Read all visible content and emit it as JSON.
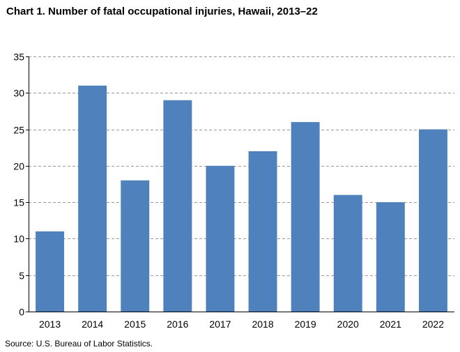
{
  "chart_data": {
    "type": "bar",
    "title": "Chart 1. Number of fatal occupational injuries, Hawaii, 2013–22",
    "categories": [
      "2013",
      "2014",
      "2015",
      "2016",
      "2017",
      "2018",
      "2019",
      "2020",
      "2021",
      "2022"
    ],
    "values": [
      11,
      31,
      18,
      29,
      20,
      22,
      26,
      16,
      15,
      25
    ],
    "xlabel": "",
    "ylabel": "",
    "ylim": [
      0,
      35
    ],
    "yticks": [
      0,
      5,
      10,
      15,
      20,
      25,
      30,
      35
    ],
    "grid": "horizontal dashed",
    "legend": "none",
    "bar_color": "#4f81bd",
    "source": "Source: U.S. Bureau of Labor Statistics."
  }
}
